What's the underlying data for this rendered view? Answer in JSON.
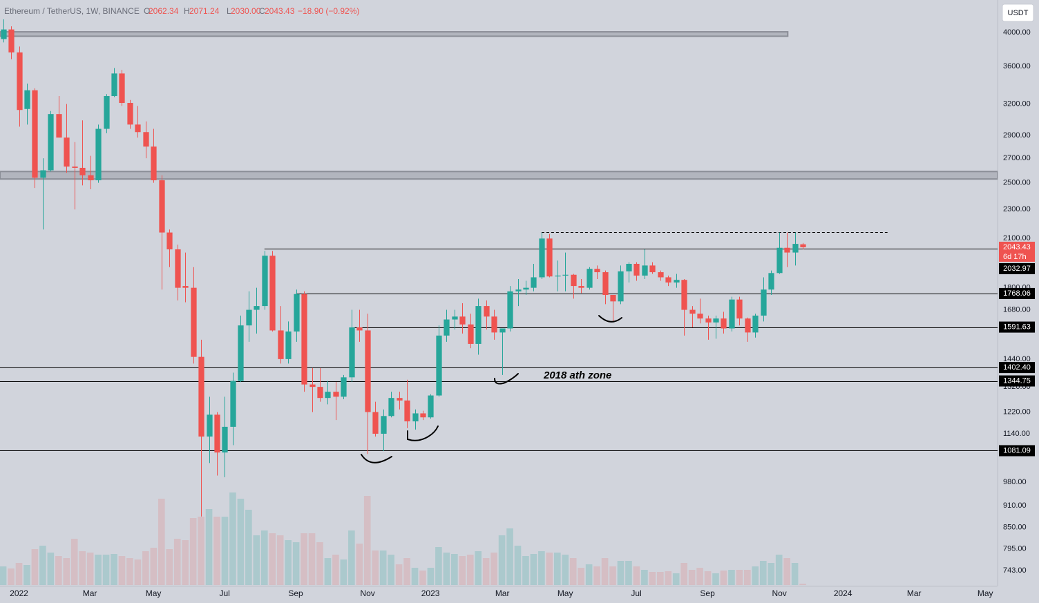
{
  "chart_data": {
    "type": "candlestick",
    "header": {
      "title": "Ethereum / TetherUS, 1W, BINANCE",
      "legend": [
        {
          "key": "O",
          "value": "2062.34"
        },
        {
          "key": "H",
          "value": "2071.24"
        },
        {
          "key": "L",
          "value": "2030.00"
        },
        {
          "key": "C",
          "value": "2043.43"
        }
      ],
      "change": "−18.90 (−0.92%)"
    },
    "currency": "USDT",
    "countdown": "6d 17h",
    "annotation": "2018 ath zone",
    "log_scale": true,
    "grid": false,
    "up_color": "#26a69a",
    "down_color": "#ef5350",
    "ylim": [
      710,
      4430
    ],
    "xlim": [
      -0.4,
      125.6
    ],
    "yticks": [
      {
        "value": 4000,
        "label": "4000.00"
      },
      {
        "value": 3600,
        "label": "3600.00"
      },
      {
        "value": 3200,
        "label": "3200.00"
      },
      {
        "value": 2900,
        "label": "2900.00"
      },
      {
        "value": 2700,
        "label": "2700.00"
      },
      {
        "value": 2500,
        "label": "2500.00"
      },
      {
        "value": 2300,
        "label": "2300.00"
      },
      {
        "value": 2100,
        "label": "2100.00"
      },
      {
        "value": 1800,
        "label": "1800.00"
      },
      {
        "value": 1680,
        "label": "1680.00"
      },
      {
        "value": 1440,
        "label": "1440.00"
      },
      {
        "value": 1320,
        "label": "1320.00"
      },
      {
        "value": 1220,
        "label": "1220.00"
      },
      {
        "value": 1140,
        "label": "1140.00"
      },
      {
        "value": 980,
        "label": "980.00"
      },
      {
        "value": 910,
        "label": "910.00"
      },
      {
        "value": 850,
        "label": "850.00"
      },
      {
        "value": 795,
        "label": "795.00"
      },
      {
        "value": 743,
        "label": "743.00"
      }
    ],
    "xticks": [
      {
        "value": 2.0,
        "label": "2022"
      },
      {
        "value": 10.95,
        "label": "Mar"
      },
      {
        "value": 18.98,
        "label": "May"
      },
      {
        "value": 27.97,
        "label": "Jul"
      },
      {
        "value": 36.95,
        "label": "Sep"
      },
      {
        "value": 46.03,
        "label": "Nov"
      },
      {
        "value": 53.97,
        "label": "2023"
      },
      {
        "value": 63.05,
        "label": "Mar"
      },
      {
        "value": 70.99,
        "label": "May"
      },
      {
        "value": 79.97,
        "label": "Jul"
      },
      {
        "value": 88.96,
        "label": "Sep"
      },
      {
        "value": 98.04,
        "label": "Nov"
      },
      {
        "value": 106.07,
        "label": "2024"
      },
      {
        "value": 115.06,
        "label": "Mar"
      },
      {
        "value": 124.05,
        "label": "May"
      }
    ],
    "x": [
      0,
      1,
      2,
      3,
      4,
      5,
      6,
      7,
      8,
      9,
      10,
      11,
      12,
      13,
      14,
      15,
      16,
      17,
      18,
      19,
      20,
      21,
      22,
      23,
      24,
      25,
      26,
      27,
      28,
      29,
      30,
      31,
      32,
      33,
      34,
      35,
      36,
      37,
      38,
      39,
      40,
      41,
      42,
      43,
      44,
      45,
      46,
      47,
      48,
      49,
      50,
      51,
      52,
      53,
      54,
      55,
      56,
      57,
      58,
      59,
      60,
      61,
      62,
      63,
      64,
      65,
      66,
      67,
      68,
      69,
      70,
      71,
      72,
      73,
      74,
      75,
      76,
      77,
      78,
      79,
      80,
      81,
      82,
      83,
      84,
      85,
      86,
      87,
      88,
      89,
      90,
      91,
      92,
      93,
      94,
      95,
      96,
      97,
      98,
      99,
      100,
      101
    ],
    "open": [
      3920,
      4040,
      3760,
      3150,
      3340,
      2540,
      2600,
      3100,
      2880,
      2630,
      2620,
      2560,
      2520,
      2960,
      3280,
      3520,
      3210,
      3000,
      2930,
      2800,
      2520,
      2140,
      2030,
      1810,
      1800,
      1450,
      1130,
      1210,
      1075,
      1165,
      1345,
      1600,
      1680,
      1700,
      1990,
      1575,
      1440,
      1570,
      1765,
      1330,
      1320,
      1275,
      1300,
      1280,
      1360,
      1590,
      1575,
      1220,
      1140,
      1205,
      1275,
      1265,
      1185,
      1215,
      1200,
      1285,
      1550,
      1630,
      1645,
      1605,
      1510,
      1700,
      1645,
      1565,
      1585,
      1780,
      1790,
      1800,
      1860,
      2100,
      1865,
      1870,
      1875,
      1810,
      1800,
      1910,
      1890,
      1760,
      1725,
      1895,
      1940,
      1870,
      1930,
      1890,
      1860,
      1830,
      1845,
      1680,
      1660,
      1635,
      1615,
      1635,
      1585,
      1735,
      1635,
      1565,
      1650,
      1790,
      1885,
      2040,
      2010,
      2062.34
    ],
    "high": [
      4170,
      4080,
      3830,
      3410,
      3360,
      2700,
      3130,
      3280,
      3200,
      2840,
      3040,
      2720,
      3000,
      3300,
      3580,
      3560,
      3240,
      3180,
      3030,
      2960,
      2560,
      2160,
      2060,
      2010,
      1920,
      1530,
      1280,
      1220,
      1280,
      1380,
      1650,
      1780,
      1800,
      2020,
      2020,
      1700,
      1620,
      1790,
      1780,
      1400,
      1400,
      1345,
      1340,
      1370,
      1680,
      1680,
      1660,
      1260,
      1230,
      1300,
      1300,
      1350,
      1230,
      1225,
      1290,
      1600,
      1680,
      1680,
      1715,
      1660,
      1740,
      1730,
      1680,
      1580,
      1810,
      1850,
      1840,
      1940,
      2140,
      2130,
      1960,
      2010,
      1880,
      1850,
      1920,
      1930,
      1900,
      1760,
      1930,
      1950,
      1950,
      2030,
      1950,
      1900,
      1870,
      1880,
      1850,
      1700,
      1740,
      1650,
      1650,
      1670,
      1750,
      1750,
      1640,
      1660,
      1860,
      1900,
      2140,
      2140,
      2140,
      2071.24
    ],
    "low": [
      3880,
      3680,
      2980,
      3000,
      2460,
      2160,
      2590,
      2880,
      2580,
      2300,
      2480,
      2450,
      2500,
      2920,
      3270,
      3180,
      2960,
      2880,
      2700,
      2500,
      1790,
      1920,
      1730,
      1720,
      1420,
      880,
      1040,
      1000,
      995,
      1100,
      1340,
      1520,
      1560,
      1680,
      1570,
      1420,
      1420,
      1520,
      1300,
      1220,
      1260,
      1250,
      1190,
      1270,
      1340,
      1520,
      1070,
      1130,
      1080,
      1200,
      1230,
      1160,
      1155,
      1190,
      1195,
      1280,
      1520,
      1580,
      1560,
      1490,
      1460,
      1580,
      1530,
      1370,
      1570,
      1700,
      1760,
      1780,
      1850,
      1860,
      1780,
      1780,
      1740,
      1770,
      1790,
      1850,
      1710,
      1620,
      1710,
      1830,
      1840,
      1850,
      1880,
      1840,
      1810,
      1800,
      1550,
      1590,
      1610,
      1530,
      1535,
      1560,
      1570,
      1600,
      1520,
      1540,
      1620,
      1760,
      1880,
      1920,
      1930,
      2030
    ],
    "close": [
      4040,
      3760,
      3140,
      3340,
      2540,
      2600,
      3100,
      2880,
      2630,
      2620,
      2560,
      2520,
      2960,
      3280,
      3520,
      3210,
      3000,
      2930,
      2800,
      2520,
      2140,
      2030,
      1800,
      1800,
      1450,
      1130,
      1210,
      1075,
      1165,
      1345,
      1600,
      1680,
      1700,
      1990,
      1575,
      1440,
      1570,
      1765,
      1330,
      1320,
      1275,
      1300,
      1280,
      1360,
      1590,
      1575,
      1220,
      1140,
      1205,
      1275,
      1265,
      1185,
      1215,
      1200,
      1285,
      1550,
      1630,
      1645,
      1605,
      1510,
      1700,
      1645,
      1565,
      1585,
      1780,
      1790,
      1800,
      1860,
      2100,
      1865,
      1870,
      1875,
      1810,
      1800,
      1910,
      1890,
      1760,
      1725,
      1895,
      1940,
      1870,
      1930,
      1890,
      1860,
      1830,
      1845,
      1680,
      1660,
      1635,
      1615,
      1635,
      1585,
      1735,
      1635,
      1565,
      1650,
      1790,
      1885,
      2040,
      2010,
      2065,
      2043.43
    ],
    "volume": [
      27,
      24,
      32,
      29,
      52,
      57,
      47,
      42,
      39,
      67,
      49,
      47,
      44,
      44,
      45,
      42,
      39,
      37,
      49,
      54,
      125,
      52,
      67,
      65,
      97,
      99,
      110,
      99,
      99,
      134,
      125,
      109,
      72,
      79,
      75,
      72,
      65,
      62,
      75,
      75,
      62,
      39,
      44,
      37,
      79,
      60,
      129,
      50,
      50,
      44,
      30,
      39,
      25,
      21,
      25,
      55,
      47,
      45,
      42,
      44,
      49,
      39,
      47,
      72,
      82,
      57,
      42,
      45,
      49,
      47,
      47,
      44,
      39,
      25,
      30,
      27,
      39,
      27,
      35,
      35,
      27,
      22,
      19,
      19,
      20,
      17,
      32,
      22,
      25,
      20,
      17,
      21,
      22,
      22,
      22,
      27,
      35,
      32,
      44,
      39,
      32,
      2
    ],
    "price_lines": [
      {
        "value": 2032.97,
        "from": 33
      },
      {
        "value": 1768.06,
        "from": 37
      },
      {
        "value": 1591.63,
        "from": 44
      },
      {
        "value": 1402.4,
        "label": "1402.40"
      },
      {
        "value": 1344.75
      },
      {
        "value": 1081.09
      }
    ],
    "dashed_lines": [
      {
        "value": 2143,
        "from": 68,
        "to": 111.7
      }
    ],
    "zones": [
      {
        "low": 3955,
        "high": 4010,
        "to": 99.1
      },
      {
        "low": 2530,
        "high": 2590
      }
    ]
  }
}
